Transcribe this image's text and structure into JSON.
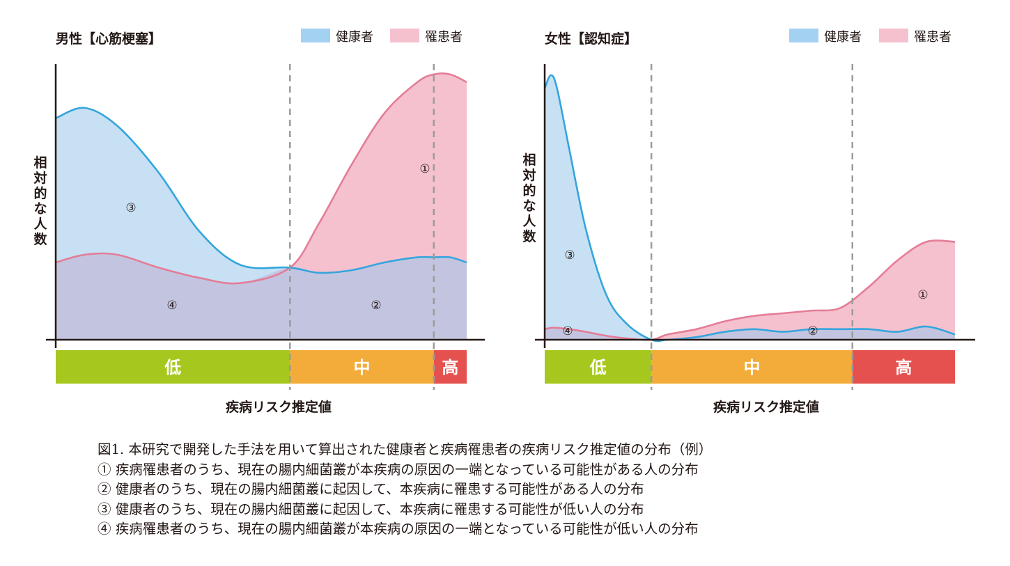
{
  "colors": {
    "healthy_line": "#34a5dc",
    "healthy_fill": "#c7e0f4",
    "patient_line": "#e47d97",
    "patient_fill": "#f5c1ce",
    "overlap_fill": "#c3c5e0",
    "band_low": "#a6c81e",
    "band_mid": "#f3ac3a",
    "band_high": "#e5514e"
  },
  "chart_data": [
    {
      "type": "area",
      "title": "男性【心筋梗塞】",
      "legend": [
        "健康者",
        "罹患者"
      ],
      "legend_position": "top-right",
      "ylabel": "相対的な人数",
      "xlabel": "疾病リスク推定値",
      "risk_bands": [
        "低",
        "中",
        "高"
      ],
      "band_edges": [
        0,
        0.57,
        0.92,
        1.0
      ],
      "x": [
        0,
        0.07,
        0.15,
        0.25,
        0.35,
        0.45,
        0.57,
        0.64,
        0.72,
        0.8,
        0.88,
        0.92,
        0.96,
        1.0
      ],
      "series": [
        {
          "name": "健康者",
          "values": [
            0.86,
            0.9,
            0.83,
            0.65,
            0.42,
            0.29,
            0.28,
            0.26,
            0.27,
            0.3,
            0.32,
            0.32,
            0.32,
            0.3
          ]
        },
        {
          "name": "罹患者",
          "values": [
            0.3,
            0.33,
            0.33,
            0.28,
            0.24,
            0.22,
            0.28,
            0.45,
            0.68,
            0.88,
            1.0,
            1.03,
            1.03,
            1.0
          ]
        }
      ],
      "regions": [
        "①",
        "②",
        "③",
        "④"
      ]
    },
    {
      "type": "area",
      "title": "女性【認知症】",
      "legend": [
        "健康者",
        "罹患者"
      ],
      "legend_position": "top-right",
      "ylabel": "相対的な人数",
      "xlabel": "疾病リスク推定値",
      "risk_bands": [
        "低",
        "中",
        "高"
      ],
      "band_edges": [
        0,
        0.26,
        0.75,
        1.0
      ],
      "x": [
        0,
        0.015,
        0.03,
        0.06,
        0.1,
        0.15,
        0.2,
        0.26,
        0.3,
        0.37,
        0.44,
        0.51,
        0.58,
        0.65,
        0.72,
        0.79,
        0.86,
        0.93,
        1.0
      ],
      "series": [
        {
          "name": "健康者",
          "values": [
            0.95,
            1.0,
            0.95,
            0.72,
            0.42,
            0.17,
            0.06,
            0.0,
            0.0,
            0.01,
            0.03,
            0.04,
            0.03,
            0.04,
            0.04,
            0.04,
            0.03,
            0.05,
            0.02
          ]
        },
        {
          "name": "罹患者",
          "values": [
            0.04,
            0.045,
            0.045,
            0.04,
            0.03,
            0.015,
            0.005,
            0.0,
            0.02,
            0.04,
            0.07,
            0.09,
            0.1,
            0.11,
            0.12,
            0.2,
            0.3,
            0.37,
            0.37
          ]
        }
      ],
      "regions": [
        "①",
        "②",
        "③",
        "④"
      ]
    }
  ],
  "caption": {
    "title": "図1.  本研究で開発した手法を用いて算出された健康者と疾病罹患者の疾病リスク推定値の分布（例）",
    "items": [
      "①  疾病罹患者のうち、現在の腸内細菌叢が本疾病の原因の一端となっている可能性がある人の分布",
      "②  健康者のうち、現在の腸内細菌叢に起因して、本疾病に罹患する可能性がある人の分布",
      "③  健康者のうち、現在の腸内細菌叢に起因して、本疾病に罹患する可能性が低い人の分布",
      "④  疾病罹患者のうち、現在の腸内細菌叢が本疾病の原因の一端となっている可能性が低い人の分布"
    ]
  }
}
